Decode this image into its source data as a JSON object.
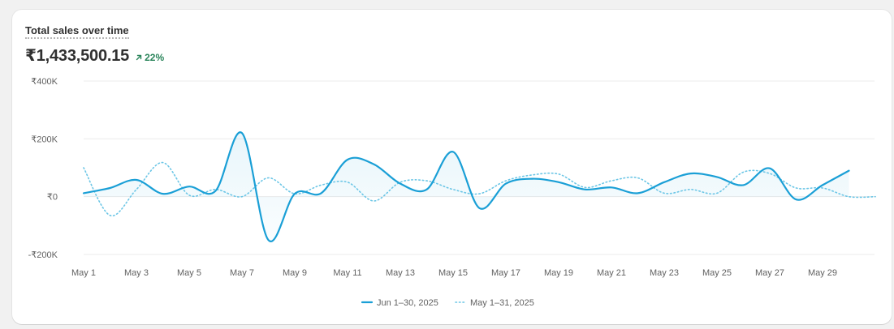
{
  "card": {
    "title": "Total sales over time",
    "metric": "₹1,433,500.15",
    "change": "22%"
  },
  "colors": {
    "current": "#1a9fd6",
    "previous": "#6cc6e6",
    "change_up": "#29845a"
  },
  "chart_data": {
    "type": "line",
    "title": "Total sales over time",
    "ylim": [
      -200000,
      400000
    ],
    "y_ticks": [
      {
        "value": 400000,
        "label": "₹400K"
      },
      {
        "value": 200000,
        "label": "₹200K"
      },
      {
        "value": 0,
        "label": "₹0"
      },
      {
        "value": -200000,
        "label": "-₹200K"
      }
    ],
    "x_tick_labels": [
      "May 1",
      "May 3",
      "May 5",
      "May 7",
      "May 9",
      "May 11",
      "May 13",
      "May 15",
      "May 17",
      "May 19",
      "May 21",
      "May 23",
      "May 25",
      "May 27",
      "May 29"
    ],
    "grid": true,
    "legend_position": "bottom-center",
    "series": [
      {
        "name": "Jun 1–30, 2025",
        "style": "solid",
        "values": [
          12000,
          30000,
          58000,
          10000,
          35000,
          20000,
          220000,
          -150000,
          10000,
          12000,
          128000,
          112000,
          45000,
          25000,
          155000,
          -40000,
          45000,
          62000,
          50000,
          25000,
          32000,
          12000,
          50000,
          80000,
          68000,
          40000,
          98000,
          -10000,
          40000,
          90000
        ]
      },
      {
        "name": "May 1–31, 2025",
        "style": "dotted",
        "values": [
          100000,
          -65000,
          25000,
          118000,
          5000,
          25000,
          0,
          65000,
          10000,
          40000,
          50000,
          -15000,
          50000,
          55000,
          25000,
          10000,
          55000,
          75000,
          78000,
          32000,
          55000,
          65000,
          12000,
          25000,
          12000,
          85000,
          80000,
          30000,
          30000,
          0,
          0
        ]
      }
    ]
  }
}
